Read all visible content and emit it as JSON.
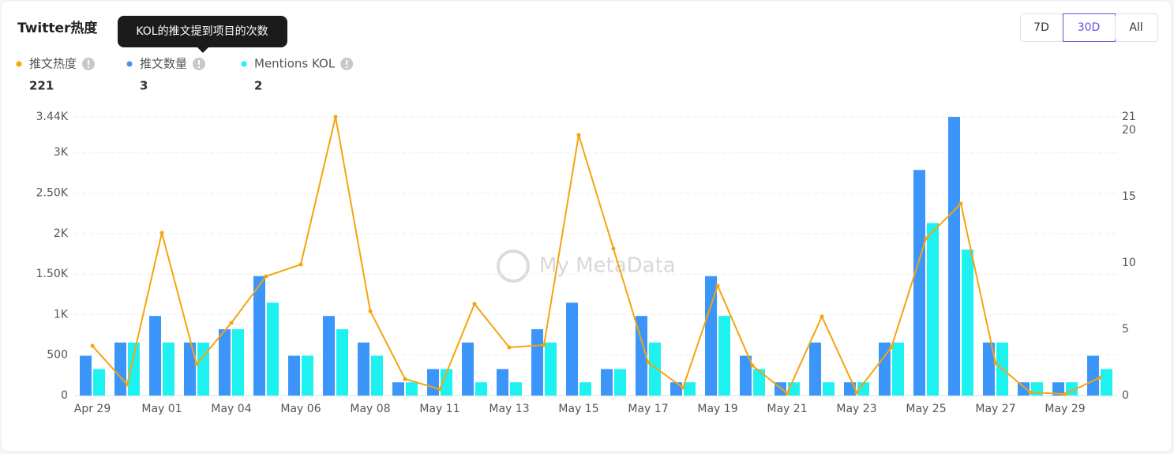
{
  "chart_data": {
    "type": "bar",
    "title": "Twitter热度",
    "tooltip": "KOL的推文提到项目的次数",
    "watermark": "My MetaData",
    "controls": [
      "7D",
      "30D",
      "All"
    ],
    "selected_control": 1,
    "categories": [
      "Apr 29",
      null,
      "May 01",
      null,
      "May 04",
      null,
      "May 06",
      null,
      "May 08",
      null,
      "May 11",
      null,
      "May 13",
      null,
      "May 15",
      null,
      "May 17",
      null,
      "May 19",
      null,
      "May 21",
      null,
      "May 23",
      null,
      "May 25",
      null,
      "May 27",
      null,
      "May 29",
      null
    ],
    "series": [
      {
        "name": "推文热度",
        "type": "line",
        "color": "#f5a40c",
        "total": 221,
        "values": [
          614,
          136,
          2008,
          390,
          897,
          1472,
          1618,
          3440,
          1043,
          205,
          78,
          1131,
          595,
          624,
          3216,
          1813,
          409,
          97,
          1355,
          370,
          29,
          975,
          39,
          595,
          1940,
          2368,
          400,
          39,
          19,
          221
        ]
      },
      {
        "name": "推文数量",
        "type": "bar",
        "axis": "y2",
        "color": "#3c96fa",
        "total": 3,
        "values": [
          3,
          4,
          6,
          4,
          5,
          9,
          3,
          6,
          4,
          1,
          2,
          4,
          2,
          5,
          7,
          2,
          6,
          1,
          9,
          3,
          1,
          4,
          1,
          4,
          17,
          21,
          4,
          1,
          1,
          3
        ]
      },
      {
        "name": "Mentions KOL",
        "type": "bar",
        "axis": "y2",
        "color": "#1ef2f0",
        "total": 2,
        "values": [
          2,
          4,
          4,
          4,
          5,
          7,
          3,
          5,
          3,
          1,
          2,
          1,
          1,
          4,
          1,
          2,
          4,
          1,
          6,
          2,
          1,
          1,
          1,
          4,
          13,
          11,
          4,
          1,
          1,
          2
        ]
      }
    ],
    "ylim": [
      0,
      3440
    ],
    "yticks": [
      0,
      500,
      {
        "value": 1000,
        "label": "1K"
      },
      {
        "value": 1500,
        "label": "1.50K"
      },
      {
        "value": 2000,
        "label": "2K"
      },
      {
        "value": 2500,
        "label": "2.50K"
      },
      {
        "value": 3000,
        "label": "3K"
      },
      {
        "value": 3440,
        "label": "3.44K"
      }
    ],
    "y2lim": [
      0,
      21
    ],
    "y2ticks": [
      0,
      5,
      10,
      15,
      20,
      21
    ],
    "grid": true
  }
}
